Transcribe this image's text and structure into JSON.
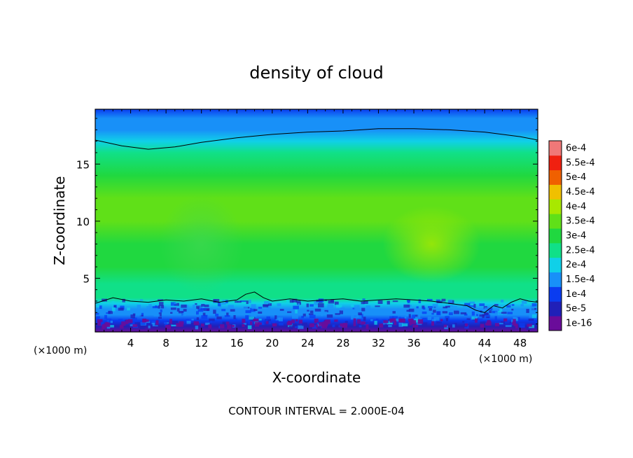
{
  "chart_data": {
    "type": "heatmap",
    "title": "density of cloud",
    "xlabel": "X-coordinate",
    "ylabel": "Z-coordinate",
    "x_unit_label": "(×1000 m)",
    "xlim": [
      0,
      50
    ],
    "ylim": [
      0.3,
      19.8
    ],
    "x_ticks": [
      4,
      8,
      12,
      16,
      20,
      24,
      28,
      32,
      36,
      40,
      44,
      48
    ],
    "x_tick_labels": [
      "4",
      "8",
      "12",
      "16",
      "20",
      "24",
      "28",
      "32",
      "36",
      "40",
      "44",
      "48"
    ],
    "y_ticks": [
      5,
      10,
      15
    ],
    "y_tick_labels": [
      "5",
      "10",
      "15"
    ],
    "contour_note": "CONTOUR INTERVAL = 2.000E-04",
    "colorbar": {
      "labels": [
        "1e-16",
        "5e-5",
        "1e-4",
        "1.5e-4",
        "2e-4",
        "2.5e-4",
        "3e-4",
        "3.5e-4",
        "4e-4",
        "4.5e-4",
        "5e-4",
        "5.5e-4",
        "6e-4"
      ],
      "values": [
        1e-16,
        5e-05,
        0.0001,
        0.00015,
        0.0002,
        0.00025,
        0.0003,
        0.00035,
        0.0004,
        0.00045,
        0.0005,
        0.00055,
        0.0006
      ],
      "colors": [
        "#6a0c9a",
        "#2020b8",
        "#0a3cf0",
        "#1890f8",
        "#10d0e8",
        "#10e088",
        "#20d840",
        "#60e018",
        "#a8e800",
        "#f0c000",
        "#f06000",
        "#f02010",
        "#f07878"
      ]
    },
    "contour_level": 0.0002,
    "upper_contour": {
      "x": [
        0,
        3,
        6,
        9,
        12,
        16,
        20,
        24,
        28,
        32,
        36,
        40,
        44,
        48,
        50
      ],
      "z": [
        17.1,
        16.6,
        16.3,
        16.5,
        16.9,
        17.3,
        17.6,
        17.8,
        17.9,
        18.1,
        18.1,
        18.0,
        17.8,
        17.4,
        17.1
      ]
    },
    "lower_contour": {
      "x": [
        0,
        2,
        4,
        6,
        8,
        10,
        12,
        14,
        16,
        17,
        18,
        19,
        20,
        22,
        24,
        26,
        28,
        30,
        32,
        34,
        36,
        38,
        40,
        42,
        43,
        44,
        45,
        46,
        47,
        48,
        49,
        50
      ],
      "z": [
        2.8,
        3.3,
        3.0,
        2.9,
        3.1,
        3.0,
        3.2,
        2.9,
        3.1,
        3.6,
        3.8,
        3.3,
        3.0,
        3.2,
        3.0,
        3.1,
        3.2,
        3.0,
        3.1,
        3.2,
        3.1,
        3.0,
        2.8,
        2.6,
        2.2,
        2.0,
        2.6,
        2.4,
        2.9,
        3.2,
        3.0,
        2.9
      ]
    },
    "density_profile": {
      "z": [
        0.3,
        0.8,
        1.3,
        1.8,
        2.3,
        2.8,
        3.3,
        4.5,
        6,
        8,
        10,
        12,
        14,
        16,
        17,
        18,
        19,
        19.8
      ],
      "value": [
        1e-16,
        5e-05,
        0.0001,
        0.00015,
        0.00019,
        0.00022,
        0.00025,
        0.00029,
        0.00032,
        0.00034,
        0.00035,
        0.00035,
        0.00033,
        0.00029,
        0.00024,
        0.00019,
        0.00015,
        0.00012
      ]
    },
    "features": [
      {
        "x_center": 38,
        "z_center": 8,
        "value": 0.0004
      },
      {
        "x_center": 12,
        "z_center": 8,
        "value": 0.00033
      }
    ],
    "grid": false
  }
}
